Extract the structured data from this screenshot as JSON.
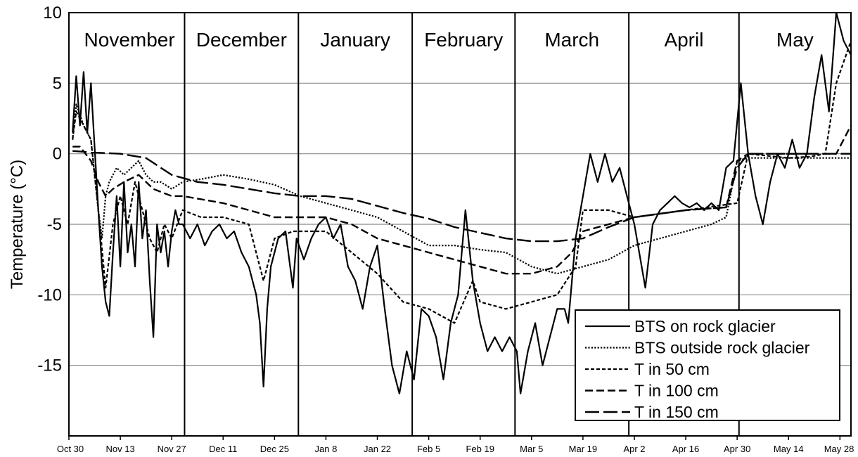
{
  "chart_data": {
    "type": "line",
    "title": "",
    "xlabel": "",
    "ylabel": "Temperature (°C)",
    "ylim": [
      -20,
      10
    ],
    "yticks": [
      10,
      5,
      0,
      -5,
      -10,
      -15
    ],
    "grid": "horizontal",
    "legend_position": "bottom-right",
    "x_tick_labels": [
      "Oct 30",
      "Nov 13",
      "Nov 27",
      "Dec 11",
      "Dec 25",
      "Jan 8",
      "Jan 22",
      "Feb 5",
      "Feb 19",
      "Mar 5",
      "Mar 19",
      "Apr 2",
      "Apr 16",
      "Apr 30",
      "May 14",
      "May 28"
    ],
    "x_tick_dates": [
      "10-30",
      "11-13",
      "11-27",
      "12-11",
      "12-25",
      "01-08",
      "01-22",
      "02-05",
      "02-19",
      "03-05",
      "03-19",
      "04-02",
      "04-16",
      "04-30",
      "05-14",
      "05-28"
    ],
    "months": [
      {
        "label": "November",
        "start": "11-01",
        "end": "11-30"
      },
      {
        "label": "December",
        "start": "12-01",
        "end": "12-31"
      },
      {
        "label": "January",
        "start": "01-01",
        "end": "01-31"
      },
      {
        "label": "February",
        "start": "02-01",
        "end": "02-28"
      },
      {
        "label": "March",
        "start": "03-01",
        "end": "03-31"
      },
      {
        "label": "April",
        "start": "04-01",
        "end": "04-30"
      },
      {
        "label": "May",
        "start": "05-01",
        "end": "05-31"
      }
    ],
    "series": [
      {
        "name": "BTS on rock glacier",
        "dash": "solid",
        "color": "#000000",
        "points": [
          [
            "10-31",
            1.5
          ],
          [
            "11-01",
            5.5
          ],
          [
            "11-02",
            2
          ],
          [
            "11-03",
            5.8
          ],
          [
            "11-04",
            1.5
          ],
          [
            "11-05",
            5
          ],
          [
            "11-06",
            0.5
          ],
          [
            "11-07",
            -4
          ],
          [
            "11-08",
            -8
          ],
          [
            "11-09",
            -10.5
          ],
          [
            "11-10",
            -11.5
          ],
          [
            "11-11",
            -7
          ],
          [
            "11-12",
            -3
          ],
          [
            "11-13",
            -8
          ],
          [
            "11-14",
            -2
          ],
          [
            "11-15",
            -7
          ],
          [
            "11-16",
            -5
          ],
          [
            "11-17",
            -8
          ],
          [
            "11-18",
            -2
          ],
          [
            "11-19",
            -6
          ],
          [
            "11-20",
            -4
          ],
          [
            "11-21",
            -9
          ],
          [
            "11-22",
            -13
          ],
          [
            "11-23",
            -5
          ],
          [
            "11-24",
            -7
          ],
          [
            "11-25",
            -5.5
          ],
          [
            "11-26",
            -8
          ],
          [
            "11-27",
            -5.5
          ],
          [
            "11-28",
            -4
          ],
          [
            "11-29",
            -5
          ],
          [
            "11-30",
            -5
          ],
          [
            "12-02",
            -6
          ],
          [
            "12-04",
            -5
          ],
          [
            "12-06",
            -6.5
          ],
          [
            "12-08",
            -5.5
          ],
          [
            "12-10",
            -5
          ],
          [
            "12-12",
            -6
          ],
          [
            "12-14",
            -5.5
          ],
          [
            "12-16",
            -7
          ],
          [
            "12-18",
            -8
          ],
          [
            "12-20",
            -10
          ],
          [
            "12-21",
            -12
          ],
          [
            "12-22",
            -16.5
          ],
          [
            "12-23",
            -11
          ],
          [
            "12-24",
            -8
          ],
          [
            "12-26",
            -6
          ],
          [
            "12-28",
            -5.5
          ],
          [
            "12-30",
            -9.5
          ],
          [
            "12-31",
            -6
          ],
          [
            "01-02",
            -7.5
          ],
          [
            "01-04",
            -6
          ],
          [
            "01-06",
            -5
          ],
          [
            "01-08",
            -4.5
          ],
          [
            "01-10",
            -6
          ],
          [
            "01-12",
            -5
          ],
          [
            "01-14",
            -8
          ],
          [
            "01-16",
            -9
          ],
          [
            "01-18",
            -11
          ],
          [
            "01-20",
            -8
          ],
          [
            "01-22",
            -6.5
          ],
          [
            "01-24",
            -11
          ],
          [
            "01-26",
            -15
          ],
          [
            "01-28",
            -17
          ],
          [
            "01-30",
            -14
          ],
          [
            "02-01",
            -16
          ],
          [
            "02-03",
            -11
          ],
          [
            "02-05",
            -11.5
          ],
          [
            "02-07",
            -13
          ],
          [
            "02-09",
            -16
          ],
          [
            "02-11",
            -12
          ],
          [
            "02-13",
            -10
          ],
          [
            "02-15",
            -4
          ],
          [
            "02-17",
            -9
          ],
          [
            "02-19",
            -12
          ],
          [
            "02-21",
            -14
          ],
          [
            "02-23",
            -13
          ],
          [
            "02-25",
            -14
          ],
          [
            "02-27",
            -13
          ],
          [
            "03-01",
            -14
          ],
          [
            "03-02",
            -17
          ],
          [
            "03-04",
            -14
          ],
          [
            "03-06",
            -12
          ],
          [
            "03-08",
            -15
          ],
          [
            "03-10",
            -13
          ],
          [
            "03-12",
            -11
          ],
          [
            "03-14",
            -11
          ],
          [
            "03-15",
            -12
          ],
          [
            "03-17",
            -6
          ],
          [
            "03-19",
            -3
          ],
          [
            "03-21",
            0
          ],
          [
            "03-23",
            -2
          ],
          [
            "03-25",
            0
          ],
          [
            "03-27",
            -2
          ],
          [
            "03-29",
            -1
          ],
          [
            "03-31",
            -3
          ],
          [
            "04-02",
            -5
          ],
          [
            "04-04",
            -8
          ],
          [
            "04-05",
            -9.5
          ],
          [
            "04-07",
            -5
          ],
          [
            "04-09",
            -4
          ],
          [
            "04-11",
            -3.5
          ],
          [
            "04-13",
            -3
          ],
          [
            "04-15",
            -3.5
          ],
          [
            "04-17",
            -3.8
          ],
          [
            "04-19",
            -3.5
          ],
          [
            "04-21",
            -4
          ],
          [
            "04-23",
            -3.5
          ],
          [
            "04-25",
            -4
          ],
          [
            "04-27",
            -1
          ],
          [
            "04-29",
            -0.5
          ],
          [
            "05-01",
            5
          ],
          [
            "05-03",
            0
          ],
          [
            "05-05",
            -3
          ],
          [
            "05-07",
            -5
          ],
          [
            "05-09",
            -2
          ],
          [
            "05-11",
            0
          ],
          [
            "05-13",
            -1
          ],
          [
            "05-15",
            1
          ],
          [
            "05-17",
            -1
          ],
          [
            "05-19",
            0
          ],
          [
            "05-21",
            4
          ],
          [
            "05-23",
            7
          ],
          [
            "05-25",
            3
          ],
          [
            "05-27",
            10
          ],
          [
            "05-29",
            8
          ],
          [
            "05-31",
            7
          ]
        ]
      },
      {
        "name": "BTS outside rock glacier",
        "dash": "dotted",
        "color": "#000000",
        "points": [
          [
            "10-31",
            1
          ],
          [
            "11-01",
            3.5
          ],
          [
            "11-03",
            2
          ],
          [
            "11-05",
            1
          ],
          [
            "11-07",
            -4
          ],
          [
            "11-08",
            -6
          ],
          [
            "11-09",
            -3
          ],
          [
            "11-10",
            -2
          ],
          [
            "11-12",
            -1
          ],
          [
            "11-14",
            -1.5
          ],
          [
            "11-16",
            -1
          ],
          [
            "11-18",
            -0.5
          ],
          [
            "11-20",
            -1.5
          ],
          [
            "11-22",
            -2
          ],
          [
            "11-24",
            -2
          ],
          [
            "11-27",
            -2.5
          ],
          [
            "11-30",
            -2
          ],
          [
            "12-05",
            -1.8
          ],
          [
            "12-11",
            -1.5
          ],
          [
            "12-18",
            -1.8
          ],
          [
            "12-25",
            -2.2
          ],
          [
            "01-01",
            -3
          ],
          [
            "01-08",
            -3.5
          ],
          [
            "01-15",
            -4
          ],
          [
            "01-22",
            -4.5
          ],
          [
            "01-29",
            -5.5
          ],
          [
            "02-05",
            -6.5
          ],
          [
            "02-12",
            -6.5
          ],
          [
            "02-19",
            -6.8
          ],
          [
            "02-26",
            -7
          ],
          [
            "03-05",
            -8
          ],
          [
            "03-12",
            -8.5
          ],
          [
            "03-19",
            -8
          ],
          [
            "03-26",
            -7.5
          ],
          [
            "04-02",
            -6.5
          ],
          [
            "04-09",
            -6
          ],
          [
            "04-16",
            -5.5
          ],
          [
            "04-23",
            -5
          ],
          [
            "04-27",
            -4.5
          ],
          [
            "04-30",
            -0.5
          ],
          [
            "05-03",
            -0.3
          ],
          [
            "05-14",
            -0.3
          ],
          [
            "05-31",
            -0.3
          ]
        ]
      },
      {
        "name": "T in 50 cm",
        "dash": "short-dash",
        "color": "#000000",
        "points": [
          [
            "10-31",
            1
          ],
          [
            "11-01",
            3
          ],
          [
            "11-03",
            2
          ],
          [
            "11-05",
            1
          ],
          [
            "11-07",
            -4
          ],
          [
            "11-09",
            -9.5
          ],
          [
            "11-11",
            -5
          ],
          [
            "11-13",
            -3
          ],
          [
            "11-15",
            -5
          ],
          [
            "11-17",
            -2
          ],
          [
            "11-19",
            -4
          ],
          [
            "11-21",
            -6
          ],
          [
            "11-23",
            -7
          ],
          [
            "11-25",
            -5
          ],
          [
            "11-27",
            -6
          ],
          [
            "11-30",
            -4
          ],
          [
            "12-05",
            -4.5
          ],
          [
            "12-11",
            -4.5
          ],
          [
            "12-18",
            -5
          ],
          [
            "12-22",
            -9
          ],
          [
            "12-25",
            -6
          ],
          [
            "12-30",
            -5.5
          ],
          [
            "01-08",
            -5.5
          ],
          [
            "01-15",
            -7
          ],
          [
            "01-22",
            -8.5
          ],
          [
            "01-29",
            -10.5
          ],
          [
            "02-05",
            -11
          ],
          [
            "02-12",
            -12
          ],
          [
            "02-17",
            -9
          ],
          [
            "02-19",
            -10.5
          ],
          [
            "02-26",
            -11
          ],
          [
            "03-05",
            -10.5
          ],
          [
            "03-12",
            -10
          ],
          [
            "03-17",
            -8
          ],
          [
            "03-19",
            -4
          ],
          [
            "03-26",
            -4
          ],
          [
            "04-02",
            -4.5
          ],
          [
            "04-16",
            -4
          ],
          [
            "04-30",
            -3.5
          ],
          [
            "05-03",
            0
          ],
          [
            "05-14",
            -0.3
          ],
          [
            "05-20",
            -0.2
          ],
          [
            "05-24",
            0
          ],
          [
            "05-27",
            5
          ],
          [
            "05-31",
            8
          ]
        ]
      },
      {
        "name": "T in 100 cm",
        "dash": "medium-dash",
        "color": "#000000",
        "points": [
          [
            "10-31",
            0.5
          ],
          [
            "11-02",
            0.5
          ],
          [
            "11-05",
            -0.5
          ],
          [
            "11-07",
            -2
          ],
          [
            "11-09",
            -3
          ],
          [
            "11-11",
            -2.5
          ],
          [
            "11-14",
            -2
          ],
          [
            "11-18",
            -1.5
          ],
          [
            "11-22",
            -2.5
          ],
          [
            "11-27",
            -3
          ],
          [
            "11-30",
            -3
          ],
          [
            "12-11",
            -3.5
          ],
          [
            "12-18",
            -4
          ],
          [
            "12-25",
            -4.5
          ],
          [
            "01-01",
            -4.5
          ],
          [
            "01-08",
            -4.5
          ],
          [
            "01-15",
            -5
          ],
          [
            "01-22",
            -6
          ],
          [
            "01-29",
            -6.5
          ],
          [
            "02-05",
            -7
          ],
          [
            "02-12",
            -7.5
          ],
          [
            "02-19",
            -8
          ],
          [
            "02-26",
            -8.5
          ],
          [
            "03-05",
            -8.5
          ],
          [
            "03-12",
            -8
          ],
          [
            "03-16",
            -7
          ],
          [
            "03-19",
            -5.5
          ],
          [
            "03-26",
            -5
          ],
          [
            "04-02",
            -4.5
          ],
          [
            "04-16",
            -4
          ],
          [
            "04-27",
            -3.8
          ],
          [
            "04-30",
            -0.5
          ],
          [
            "05-03",
            0
          ],
          [
            "05-14",
            0
          ],
          [
            "05-27",
            0
          ],
          [
            "05-31",
            2
          ]
        ]
      },
      {
        "name": "T in 150 cm",
        "dash": "long-dash",
        "color": "#000000",
        "points": [
          [
            "10-31",
            0.2
          ],
          [
            "11-05",
            0.1
          ],
          [
            "11-13",
            0
          ],
          [
            "11-20",
            -0.3
          ],
          [
            "11-27",
            -1.5
          ],
          [
            "12-04",
            -2
          ],
          [
            "12-11",
            -2.2
          ],
          [
            "12-18",
            -2.5
          ],
          [
            "12-25",
            -2.8
          ],
          [
            "01-01",
            -3
          ],
          [
            "01-08",
            -3
          ],
          [
            "01-15",
            -3.2
          ],
          [
            "01-22",
            -3.7
          ],
          [
            "01-29",
            -4.2
          ],
          [
            "02-05",
            -4.6
          ],
          [
            "02-12",
            -5.2
          ],
          [
            "02-19",
            -5.6
          ],
          [
            "02-26",
            -6
          ],
          [
            "03-05",
            -6.2
          ],
          [
            "03-12",
            -6.2
          ],
          [
            "03-19",
            -6
          ],
          [
            "03-26",
            -5.2
          ],
          [
            "04-02",
            -4.5
          ],
          [
            "04-16",
            -4
          ],
          [
            "04-27",
            -3.8
          ],
          [
            "04-30",
            -1
          ],
          [
            "05-03",
            0
          ],
          [
            "05-14",
            0
          ],
          [
            "05-31",
            0
          ]
        ]
      }
    ]
  }
}
